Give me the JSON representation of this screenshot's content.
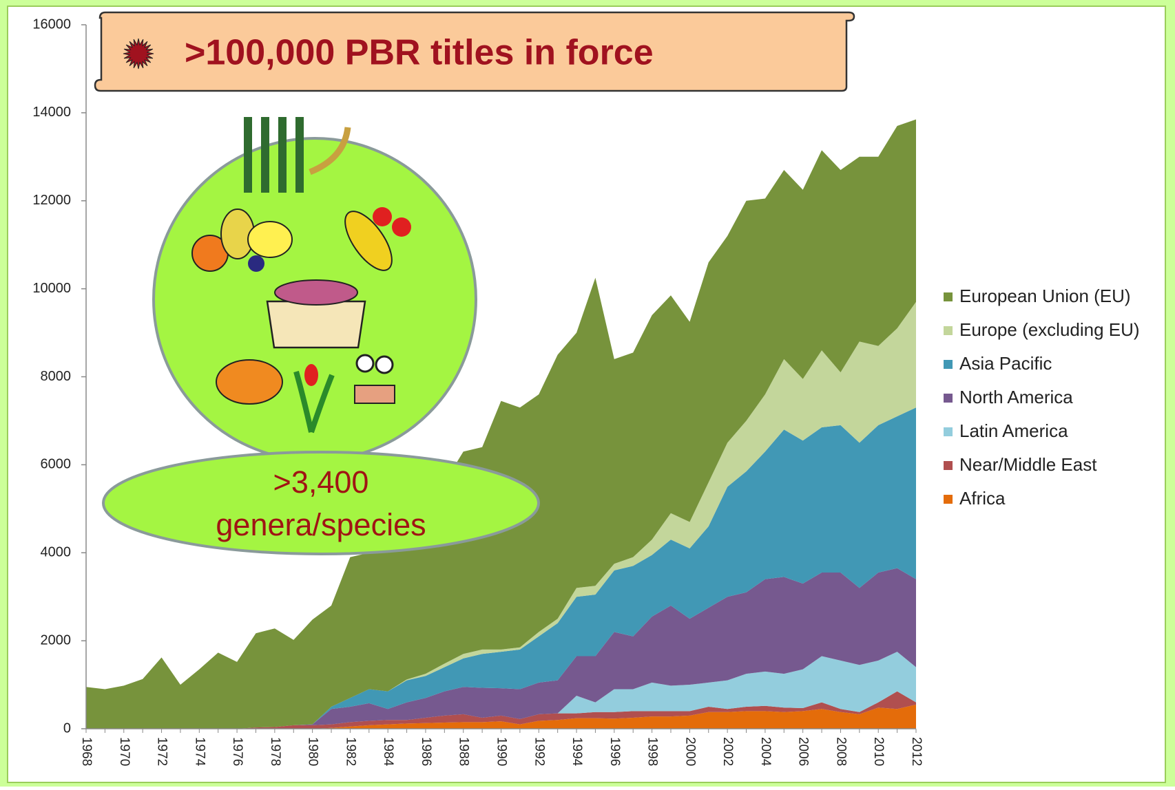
{
  "chart_data": {
    "type": "stacked_area",
    "annotations": [
      ">100,000 PBR titles in force",
      ">3,400",
      "genera/species"
    ],
    "categories": [
      "1968",
      null,
      "1970",
      null,
      "1972",
      null,
      "1974",
      null,
      "1976",
      null,
      "1978",
      null,
      "1980",
      null,
      "1982",
      null,
      "1984",
      null,
      "1986",
      null,
      "1988",
      null,
      "1990",
      null,
      "1992",
      null,
      "1994",
      null,
      "1996",
      null,
      "1998",
      null,
      "2000",
      null,
      "2002",
      null,
      "2004",
      null,
      "2006",
      null,
      "2008",
      null,
      "2010",
      null,
      "2012"
    ],
    "series": [
      {
        "name": "European Union (EU)",
        "color": "#77933c",
        "values": [
          950,
          900,
          980,
          1130,
          1620,
          1000,
          1350,
          1730,
          1520,
          2140,
          2240,
          1940,
          2380,
          2300,
          3200,
          3100,
          3450,
          3980,
          4250,
          4120,
          4600,
          4600,
          5650,
          5450,
          5400,
          6000,
          5800,
          7000,
          4650,
          4650,
          5100,
          4950,
          4550,
          5000,
          4700,
          5000,
          4450,
          4300,
          4300,
          4550,
          4600,
          4200,
          4300,
          4600,
          4150
        ]
      },
      {
        "name": "Europe (excluding EU)",
        "color": "#c3d69b",
        "values": [
          0,
          0,
          0,
          0,
          0,
          0,
          0,
          0,
          0,
          0,
          0,
          0,
          0,
          0,
          0,
          0,
          0,
          20,
          50,
          80,
          100,
          100,
          50,
          50,
          100,
          100,
          200,
          200,
          150,
          200,
          350,
          600,
          600,
          1000,
          1000,
          1150,
          1300,
          1600,
          1400,
          1750,
          1200,
          2300,
          1800,
          2000,
          2400
        ]
      },
      {
        "name": "Asia Pacific",
        "color": "#4198b5",
        "values": [
          0,
          0,
          0,
          0,
          0,
          0,
          0,
          0,
          0,
          0,
          0,
          0,
          0,
          50,
          200,
          320,
          400,
          500,
          500,
          550,
          650,
          770,
          830,
          900,
          1050,
          1300,
          1350,
          1400,
          1400,
          1600,
          1400,
          1500,
          1600,
          1850,
          2500,
          2750,
          2900,
          3350,
          3250,
          3300,
          3350,
          3300,
          3350,
          3450,
          3900
        ]
      },
      {
        "name": "North America",
        "color": "#76598f",
        "values": [
          0,
          0,
          0,
          0,
          0,
          0,
          0,
          0,
          0,
          0,
          0,
          0,
          20,
          350,
          350,
          400,
          250,
          400,
          450,
          550,
          620,
          680,
          620,
          680,
          720,
          750,
          900,
          1050,
          1300,
          1200,
          1500,
          1820,
          1500,
          1700,
          1900,
          1850,
          2100,
          2200,
          1950,
          1900,
          2000,
          1750,
          2000,
          1900,
          2000
        ]
      },
      {
        "name": "Latin America",
        "color": "#93cddd",
        "values": [
          0,
          0,
          0,
          0,
          0,
          0,
          0,
          0,
          0,
          0,
          0,
          0,
          0,
          0,
          0,
          0,
          0,
          0,
          0,
          0,
          0,
          0,
          0,
          0,
          0,
          0,
          400,
          220,
          520,
          500,
          650,
          580,
          600,
          550,
          650,
          750,
          780,
          770,
          880,
          1050,
          1100,
          1070,
          950,
          900,
          800
        ]
      },
      {
        "name": "Near/Middle East",
        "color": "#b04f4f",
        "values": [
          0,
          0,
          0,
          0,
          0,
          0,
          0,
          0,
          0,
          30,
          40,
          80,
          80,
          80,
          100,
          100,
          100,
          80,
          120,
          160,
          180,
          100,
          130,
          120,
          150,
          150,
          110,
          140,
          150,
          150,
          120,
          120,
          100,
          120,
          70,
          100,
          120,
          100,
          70,
          150,
          70,
          50,
          120,
          400,
          50
        ]
      },
      {
        "name": "Africa",
        "color": "#e46c0a",
        "values": [
          0,
          0,
          0,
          0,
          0,
          0,
          0,
          0,
          0,
          0,
          0,
          0,
          0,
          20,
          50,
          80,
          100,
          120,
          130,
          140,
          150,
          150,
          170,
          100,
          180,
          200,
          240,
          240,
          230,
          250,
          280,
          280,
          300,
          380,
          380,
          400,
          400,
          380,
          400,
          450,
          380,
          330,
          480,
          450,
          550
        ]
      }
    ],
    "ylim": [
      0,
      16000
    ],
    "yticks": [
      0,
      2000,
      4000,
      6000,
      8000,
      10000,
      12000,
      14000,
      16000
    ],
    "grid": false,
    "legend": "right"
  }
}
